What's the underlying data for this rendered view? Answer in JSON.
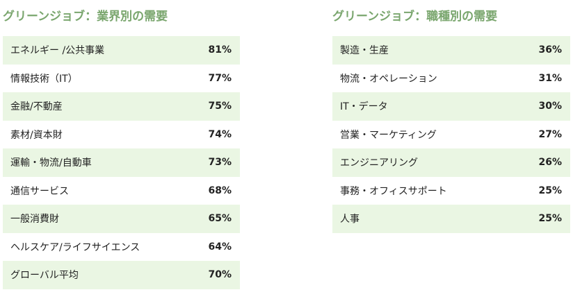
{
  "industry": {
    "title": "グリーンジョブ：業界別の需要",
    "rows": [
      {
        "label": "エネルギー /公共事業",
        "value": "81%"
      },
      {
        "label": "情報技術（IT）",
        "value": "77%"
      },
      {
        "label": "金融/不動産",
        "value": "75%"
      },
      {
        "label": "素材/資本財",
        "value": "74%"
      },
      {
        "label": "運輸・物流/自動車",
        "value": "73%"
      },
      {
        "label": "通信サービス",
        "value": "68%"
      },
      {
        "label": "一般消費財",
        "value": "65%"
      },
      {
        "label": "ヘルスケア/ライフサイエンス",
        "value": "64%"
      },
      {
        "label": "グローバル平均",
        "value": "70%"
      }
    ]
  },
  "jobtype": {
    "title": "グリーンジョブ：職種別の需要",
    "rows": [
      {
        "label": "製造・生産",
        "value": "36%"
      },
      {
        "label": "物流・オペレーション",
        "value": "31%"
      },
      {
        "label": "IT・データ",
        "value": "30%"
      },
      {
        "label": "営業・マーケティング",
        "value": "27%"
      },
      {
        "label": "エンジニアリング",
        "value": "26%"
      },
      {
        "label": "事務・オフィスサポート",
        "value": "25%"
      },
      {
        "label": "人事",
        "value": "25%"
      }
    ]
  },
  "colors": {
    "title_green": "#7aa66e",
    "row_band": "#eaf6e3"
  }
}
